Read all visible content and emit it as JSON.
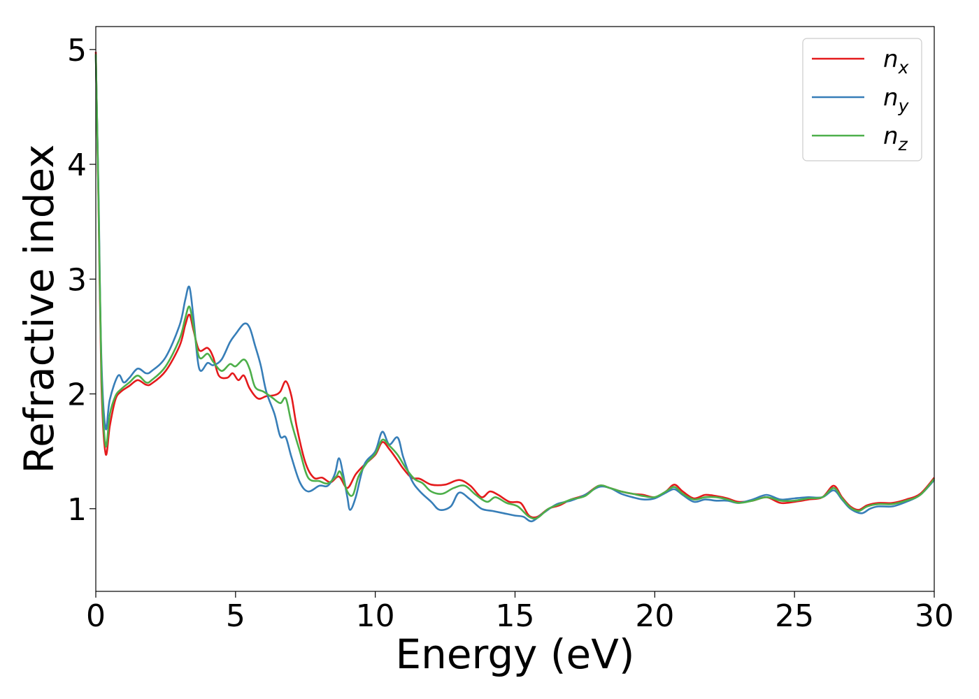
{
  "chart_data": {
    "type": "line",
    "title": "",
    "xlabel": "Energy (eV)",
    "ylabel": "Refractive index",
    "xlim": [
      0,
      30
    ],
    "ylim": [
      0.28,
      5.2
    ],
    "xticks": [
      0,
      5,
      10,
      15,
      20,
      25,
      30
    ],
    "yticks": [
      1,
      2,
      3,
      4,
      5
    ],
    "grid": false,
    "legend_position": "top-right",
    "series": [
      {
        "name": "n_x",
        "label_base": "n",
        "label_sub": "x",
        "color": "#e41a1c",
        "points": [
          [
            0.0,
            4.98
          ],
          [
            0.1,
            3.6
          ],
          [
            0.2,
            2.1
          ],
          [
            0.35,
            1.48
          ],
          [
            0.5,
            1.72
          ],
          [
            0.7,
            1.95
          ],
          [
            0.9,
            2.02
          ],
          [
            1.2,
            2.07
          ],
          [
            1.5,
            2.12
          ],
          [
            1.8,
            2.08
          ],
          [
            2.0,
            2.09
          ],
          [
            2.5,
            2.2
          ],
          [
            3.0,
            2.42
          ],
          [
            3.2,
            2.6
          ],
          [
            3.35,
            2.69
          ],
          [
            3.5,
            2.55
          ],
          [
            3.7,
            2.38
          ],
          [
            4.0,
            2.4
          ],
          [
            4.2,
            2.32
          ],
          [
            4.4,
            2.16
          ],
          [
            4.7,
            2.14
          ],
          [
            4.9,
            2.18
          ],
          [
            5.1,
            2.12
          ],
          [
            5.3,
            2.16
          ],
          [
            5.5,
            2.05
          ],
          [
            5.8,
            1.96
          ],
          [
            6.1,
            1.98
          ],
          [
            6.4,
            1.99
          ],
          [
            6.6,
            2.02
          ],
          [
            6.8,
            2.11
          ],
          [
            7.0,
            1.98
          ],
          [
            7.2,
            1.7
          ],
          [
            7.5,
            1.4
          ],
          [
            7.8,
            1.27
          ],
          [
            8.1,
            1.27
          ],
          [
            8.4,
            1.23
          ],
          [
            8.7,
            1.28
          ],
          [
            9.0,
            1.18
          ],
          [
            9.3,
            1.3
          ],
          [
            9.6,
            1.38
          ],
          [
            10.0,
            1.47
          ],
          [
            10.25,
            1.58
          ],
          [
            10.5,
            1.52
          ],
          [
            10.8,
            1.42
          ],
          [
            11.0,
            1.35
          ],
          [
            11.3,
            1.27
          ],
          [
            11.6,
            1.26
          ],
          [
            12.0,
            1.21
          ],
          [
            12.5,
            1.21
          ],
          [
            13.0,
            1.25
          ],
          [
            13.4,
            1.2
          ],
          [
            13.8,
            1.1
          ],
          [
            14.1,
            1.15
          ],
          [
            14.4,
            1.12
          ],
          [
            14.8,
            1.06
          ],
          [
            15.2,
            1.05
          ],
          [
            15.5,
            0.94
          ],
          [
            15.8,
            0.93
          ],
          [
            16.2,
            1.0
          ],
          [
            16.6,
            1.03
          ],
          [
            17.0,
            1.08
          ],
          [
            17.5,
            1.12
          ],
          [
            18.0,
            1.2
          ],
          [
            18.4,
            1.18
          ],
          [
            18.8,
            1.15
          ],
          [
            19.2,
            1.13
          ],
          [
            19.6,
            1.12
          ],
          [
            20.0,
            1.1
          ],
          [
            20.4,
            1.15
          ],
          [
            20.7,
            1.21
          ],
          [
            21.0,
            1.15
          ],
          [
            21.4,
            1.09
          ],
          [
            21.8,
            1.12
          ],
          [
            22.2,
            1.11
          ],
          [
            22.6,
            1.09
          ],
          [
            23.0,
            1.06
          ],
          [
            23.5,
            1.07
          ],
          [
            24.0,
            1.1
          ],
          [
            24.5,
            1.05
          ],
          [
            25.0,
            1.06
          ],
          [
            25.5,
            1.08
          ],
          [
            26.0,
            1.1
          ],
          [
            26.4,
            1.2
          ],
          [
            26.7,
            1.1
          ],
          [
            27.0,
            1.02
          ],
          [
            27.3,
            0.99
          ],
          [
            27.6,
            1.03
          ],
          [
            28.0,
            1.05
          ],
          [
            28.5,
            1.05
          ],
          [
            29.0,
            1.08
          ],
          [
            29.5,
            1.13
          ],
          [
            30.0,
            1.27
          ]
        ]
      },
      {
        "name": "n_y",
        "label_base": "n",
        "label_sub": "y",
        "color": "#377eb8",
        "points": [
          [
            0.0,
            4.95
          ],
          [
            0.1,
            3.7
          ],
          [
            0.2,
            2.3
          ],
          [
            0.35,
            1.7
          ],
          [
            0.5,
            1.95
          ],
          [
            0.8,
            2.16
          ],
          [
            1.0,
            2.1
          ],
          [
            1.2,
            2.14
          ],
          [
            1.5,
            2.22
          ],
          [
            1.8,
            2.18
          ],
          [
            2.0,
            2.2
          ],
          [
            2.5,
            2.32
          ],
          [
            3.0,
            2.6
          ],
          [
            3.2,
            2.82
          ],
          [
            3.35,
            2.93
          ],
          [
            3.5,
            2.65
          ],
          [
            3.7,
            2.22
          ],
          [
            4.0,
            2.27
          ],
          [
            4.2,
            2.25
          ],
          [
            4.5,
            2.3
          ],
          [
            4.8,
            2.45
          ],
          [
            5.0,
            2.52
          ],
          [
            5.3,
            2.61
          ],
          [
            5.5,
            2.58
          ],
          [
            5.7,
            2.42
          ],
          [
            5.9,
            2.25
          ],
          [
            6.1,
            2.02
          ],
          [
            6.4,
            1.82
          ],
          [
            6.6,
            1.63
          ],
          [
            6.8,
            1.62
          ],
          [
            7.0,
            1.45
          ],
          [
            7.3,
            1.23
          ],
          [
            7.6,
            1.15
          ],
          [
            8.0,
            1.2
          ],
          [
            8.3,
            1.2
          ],
          [
            8.55,
            1.3
          ],
          [
            8.7,
            1.44
          ],
          [
            8.85,
            1.3
          ],
          [
            9.0,
            1.1
          ],
          [
            9.1,
            0.99
          ],
          [
            9.3,
            1.1
          ],
          [
            9.6,
            1.38
          ],
          [
            10.0,
            1.5
          ],
          [
            10.25,
            1.67
          ],
          [
            10.5,
            1.56
          ],
          [
            10.8,
            1.62
          ],
          [
            11.0,
            1.45
          ],
          [
            11.3,
            1.25
          ],
          [
            11.6,
            1.15
          ],
          [
            12.0,
            1.06
          ],
          [
            12.3,
            0.99
          ],
          [
            12.7,
            1.02
          ],
          [
            13.0,
            1.14
          ],
          [
            13.4,
            1.08
          ],
          [
            13.8,
            1.0
          ],
          [
            14.2,
            0.98
          ],
          [
            14.6,
            0.96
          ],
          [
            15.0,
            0.94
          ],
          [
            15.3,
            0.93
          ],
          [
            15.6,
            0.89
          ],
          [
            16.0,
            0.96
          ],
          [
            16.5,
            1.04
          ],
          [
            17.0,
            1.07
          ],
          [
            17.5,
            1.12
          ],
          [
            18.0,
            1.19
          ],
          [
            18.4,
            1.18
          ],
          [
            18.8,
            1.13
          ],
          [
            19.2,
            1.1
          ],
          [
            19.6,
            1.08
          ],
          [
            20.0,
            1.09
          ],
          [
            20.4,
            1.14
          ],
          [
            20.7,
            1.17
          ],
          [
            21.0,
            1.12
          ],
          [
            21.4,
            1.06
          ],
          [
            21.8,
            1.08
          ],
          [
            22.2,
            1.07
          ],
          [
            22.6,
            1.07
          ],
          [
            23.0,
            1.05
          ],
          [
            23.5,
            1.08
          ],
          [
            24.0,
            1.12
          ],
          [
            24.5,
            1.08
          ],
          [
            25.0,
            1.09
          ],
          [
            25.5,
            1.1
          ],
          [
            26.0,
            1.1
          ],
          [
            26.4,
            1.16
          ],
          [
            26.7,
            1.08
          ],
          [
            27.0,
            1.0
          ],
          [
            27.4,
            0.96
          ],
          [
            27.7,
            1.0
          ],
          [
            28.0,
            1.02
          ],
          [
            28.5,
            1.02
          ],
          [
            29.0,
            1.06
          ],
          [
            29.5,
            1.12
          ],
          [
            30.0,
            1.25
          ]
        ]
      },
      {
        "name": "n_z",
        "label_base": "n",
        "label_sub": "z",
        "color": "#4daf4a",
        "points": [
          [
            0.0,
            4.96
          ],
          [
            0.1,
            3.65
          ],
          [
            0.2,
            2.2
          ],
          [
            0.35,
            1.55
          ],
          [
            0.5,
            1.82
          ],
          [
            0.7,
            1.98
          ],
          [
            0.9,
            2.04
          ],
          [
            1.2,
            2.1
          ],
          [
            1.5,
            2.16
          ],
          [
            1.8,
            2.1
          ],
          [
            2.0,
            2.12
          ],
          [
            2.5,
            2.24
          ],
          [
            3.0,
            2.48
          ],
          [
            3.2,
            2.66
          ],
          [
            3.35,
            2.76
          ],
          [
            3.5,
            2.58
          ],
          [
            3.7,
            2.32
          ],
          [
            4.0,
            2.35
          ],
          [
            4.2,
            2.28
          ],
          [
            4.5,
            2.2
          ],
          [
            4.8,
            2.26
          ],
          [
            5.0,
            2.24
          ],
          [
            5.3,
            2.3
          ],
          [
            5.5,
            2.22
          ],
          [
            5.7,
            2.06
          ],
          [
            6.0,
            2.02
          ],
          [
            6.3,
            1.97
          ],
          [
            6.6,
            1.92
          ],
          [
            6.8,
            1.96
          ],
          [
            7.0,
            1.75
          ],
          [
            7.3,
            1.5
          ],
          [
            7.6,
            1.27
          ],
          [
            8.0,
            1.24
          ],
          [
            8.3,
            1.22
          ],
          [
            8.6,
            1.28
          ],
          [
            8.75,
            1.32
          ],
          [
            9.0,
            1.15
          ],
          [
            9.2,
            1.12
          ],
          [
            9.4,
            1.28
          ],
          [
            9.7,
            1.4
          ],
          [
            10.0,
            1.48
          ],
          [
            10.25,
            1.6
          ],
          [
            10.5,
            1.55
          ],
          [
            10.8,
            1.47
          ],
          [
            11.1,
            1.35
          ],
          [
            11.4,
            1.26
          ],
          [
            11.7,
            1.22
          ],
          [
            12.0,
            1.15
          ],
          [
            12.4,
            1.13
          ],
          [
            12.8,
            1.18
          ],
          [
            13.2,
            1.2
          ],
          [
            13.6,
            1.12
          ],
          [
            14.0,
            1.06
          ],
          [
            14.3,
            1.1
          ],
          [
            14.7,
            1.05
          ],
          [
            15.1,
            1.02
          ],
          [
            15.5,
            0.93
          ],
          [
            15.8,
            0.92
          ],
          [
            16.2,
            1.0
          ],
          [
            16.6,
            1.04
          ],
          [
            17.0,
            1.08
          ],
          [
            17.5,
            1.11
          ],
          [
            18.0,
            1.2
          ],
          [
            18.4,
            1.18
          ],
          [
            18.8,
            1.15
          ],
          [
            19.2,
            1.13
          ],
          [
            19.6,
            1.11
          ],
          [
            20.0,
            1.1
          ],
          [
            20.4,
            1.15
          ],
          [
            20.7,
            1.19
          ],
          [
            21.0,
            1.13
          ],
          [
            21.4,
            1.08
          ],
          [
            21.8,
            1.1
          ],
          [
            22.2,
            1.1
          ],
          [
            22.6,
            1.08
          ],
          [
            23.0,
            1.05
          ],
          [
            23.5,
            1.07
          ],
          [
            24.0,
            1.1
          ],
          [
            24.5,
            1.07
          ],
          [
            25.0,
            1.07
          ],
          [
            25.5,
            1.09
          ],
          [
            26.0,
            1.1
          ],
          [
            26.4,
            1.18
          ],
          [
            26.7,
            1.09
          ],
          [
            27.0,
            1.01
          ],
          [
            27.3,
            0.98
          ],
          [
            27.6,
            1.02
          ],
          [
            28.0,
            1.04
          ],
          [
            28.5,
            1.04
          ],
          [
            29.0,
            1.07
          ],
          [
            29.5,
            1.12
          ],
          [
            30.0,
            1.26
          ]
        ]
      }
    ]
  }
}
